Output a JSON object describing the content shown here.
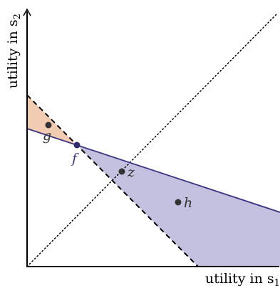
{
  "diagram": {
    "axes": {
      "x_label_main": "utility in s",
      "x_label_sub": "1",
      "y_label_main": "utility in s",
      "y_label_sub": "2"
    },
    "points": [
      {
        "id": "g",
        "label": "g",
        "color": "#333333"
      },
      {
        "id": "f",
        "label": "f",
        "color": "#2e2a6b"
      },
      {
        "id": "z",
        "label": "z",
        "color": "#333333"
      },
      {
        "id": "h",
        "label": "h",
        "color": "#333333"
      }
    ],
    "colors": {
      "orange_region": "#f2cbb3",
      "blue_region": "#c3c0e0",
      "blue_line": "#3a3580",
      "dashed_line": "#000000",
      "axis": "#000000"
    }
  }
}
